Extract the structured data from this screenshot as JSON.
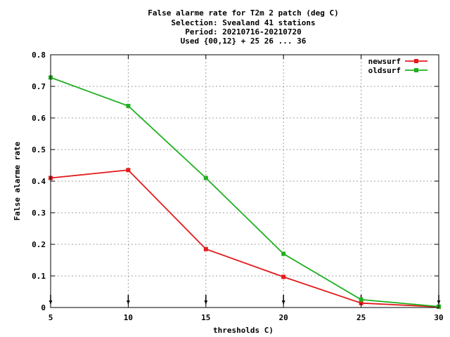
{
  "chart_data": {
    "type": "line",
    "title": [
      "False alarme rate  for T2m 2 patch (deg C)",
      "Selection: Svealand     41 stations",
      "Period: 20210716-20210720",
      "Used {00,12} + 25 26 ... 36"
    ],
    "xlabel": "thresholds C)",
    "ylabel": "False alarme rate",
    "xlim": [
      5,
      30
    ],
    "ylim": [
      0,
      0.8
    ],
    "xticks": [
      5,
      10,
      15,
      20,
      25,
      30
    ],
    "yticks": [
      0,
      0.1,
      0.2,
      0.3,
      0.4,
      0.5,
      0.6,
      0.7,
      0.8
    ],
    "ytick_labels": [
      "0",
      "0.1",
      "0.2",
      "0.3",
      "0.4",
      "0.5",
      "0.6",
      "0.7",
      "0.8"
    ],
    "grid": true,
    "legend_position": "top-right",
    "x": [
      5,
      10,
      15,
      20,
      25,
      30
    ],
    "series": [
      {
        "name": "newsurf",
        "color": "#e41a1c",
        "values": [
          0.41,
          0.435,
          0.185,
          0.097,
          0.014,
          0.002
        ]
      },
      {
        "name": "oldsurf",
        "color": "#1fb01f",
        "values": [
          0.728,
          0.638,
          0.41,
          0.17,
          0.025,
          0.003
        ]
      }
    ],
    "marker_x": [
      5,
      10,
      15,
      20,
      25,
      30
    ]
  }
}
